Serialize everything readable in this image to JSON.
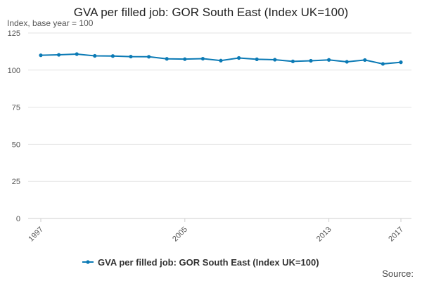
{
  "chart_data": {
    "type": "line",
    "title": "GVA per filled job: GOR South East (Index UK=100)",
    "ylabel": "Index, base year = 100",
    "xlabel": "",
    "x": [
      1997,
      1998,
      1999,
      2000,
      2001,
      2002,
      2003,
      2004,
      2005,
      2006,
      2007,
      2008,
      2009,
      2010,
      2011,
      2012,
      2013,
      2014,
      2015,
      2016,
      2017
    ],
    "x_tick_labels": [
      "1997",
      "2005",
      "2013",
      "2017"
    ],
    "y_ticks": [
      0,
      25,
      50,
      75,
      100,
      125
    ],
    "ylim": [
      0,
      125
    ],
    "grid": true,
    "legend_position": "bottom",
    "series": [
      {
        "name": "GVA per filled job: GOR South East (Index UK=100)",
        "color": "#0b7ab5",
        "values": [
          110.0,
          110.3,
          110.8,
          109.6,
          109.5,
          109.1,
          109.0,
          107.6,
          107.4,
          107.7,
          106.4,
          108.2,
          107.3,
          107.0,
          105.9,
          106.3,
          106.9,
          105.6,
          106.8,
          104.2,
          105.3
        ]
      }
    ]
  },
  "source_label": "Source:"
}
